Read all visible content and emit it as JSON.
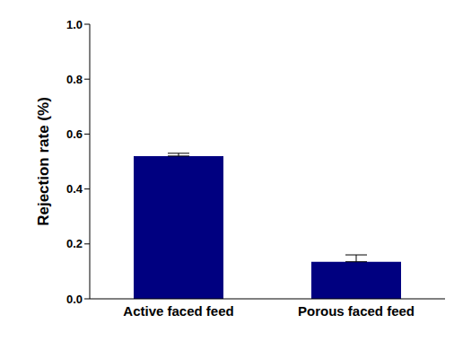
{
  "chart_data": {
    "type": "bar",
    "y_label": "Rejection rate (%)",
    "categories": [
      "Active faced feed",
      "Porous faced feed"
    ],
    "values": [
      0.52,
      0.135
    ],
    "errors": [
      0.01,
      0.025
    ],
    "color": "#000080",
    "ylim": [
      0,
      1
    ],
    "yticks": [
      {
        "value": 0,
        "label": "0.0"
      },
      0.2,
      0.4,
      0.6,
      0.8,
      {
        "value": 1,
        "label": "1.0"
      }
    ],
    "grid": false
  }
}
